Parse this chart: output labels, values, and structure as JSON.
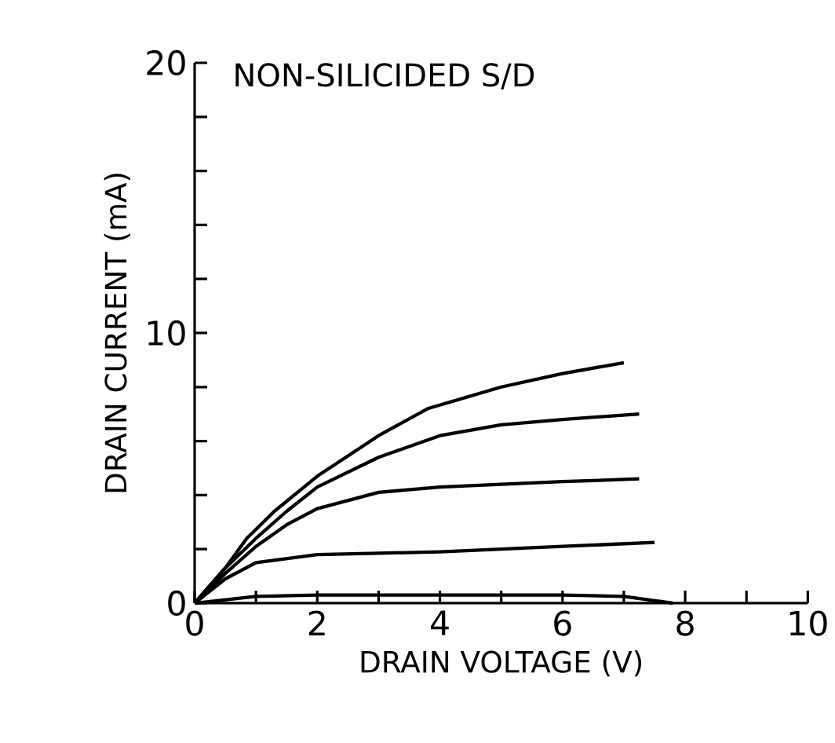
{
  "chart_data": {
    "type": "line",
    "title": "NON-SILICIDED S/D",
    "xlabel": "DRAIN VOLTAGE (V)",
    "ylabel": "DRAIN CURRENT (mA)",
    "xlim": [
      0,
      10
    ],
    "ylim": [
      0,
      20
    ],
    "xticks": [
      0,
      {
        "value": 1,
        "label": null
      },
      2,
      {
        "value": 3,
        "label": null
      },
      4,
      {
        "value": 5,
        "label": null
      },
      6,
      {
        "value": 7,
        "label": null
      },
      8,
      {
        "value": 9,
        "label": null
      },
      10
    ],
    "yticks": [
      0,
      {
        "value": 2,
        "label": null
      },
      {
        "value": 4,
        "label": null
      },
      {
        "value": 6,
        "label": null
      },
      {
        "value": 8,
        "label": null
      },
      10,
      {
        "value": 12,
        "label": null
      },
      {
        "value": 14,
        "label": null
      },
      {
        "value": 16,
        "label": null
      },
      {
        "value": 18,
        "label": null
      },
      20
    ],
    "marker": "none",
    "line_style": "solid",
    "series": [
      {
        "color": "#000000",
        "x": [
          0,
          0.5,
          0.85,
          1.3,
          2,
          3,
          3.8,
          5,
          6,
          7
        ],
        "values": [
          0,
          1.3,
          2.4,
          3.4,
          4.7,
          6.2,
          7.2,
          8.0,
          8.5,
          8.9
        ]
      },
      {
        "color": "#000000",
        "x": [
          0,
          0.5,
          1,
          1.5,
          2,
          3,
          4,
          5,
          6,
          7.25
        ],
        "values": [
          0,
          1.3,
          2.4,
          3.4,
          4.3,
          5.4,
          6.2,
          6.6,
          6.8,
          7.0
        ]
      },
      {
        "color": "#000000",
        "x": [
          0,
          0.5,
          1,
          1.5,
          2,
          3,
          4,
          5,
          6,
          7.25
        ],
        "values": [
          0,
          1.1,
          2.1,
          2.9,
          3.5,
          4.1,
          4.3,
          4.4,
          4.5,
          4.6
        ]
      },
      {
        "color": "#000000",
        "x": [
          0,
          0.5,
          1,
          2,
          3,
          4,
          5,
          6,
          7.5
        ],
        "values": [
          0,
          0.9,
          1.5,
          1.8,
          1.85,
          1.9,
          2.0,
          2.1,
          2.25
        ]
      },
      {
        "color": "#000000",
        "x": [
          0,
          1,
          2,
          4,
          6,
          7,
          7.8
        ],
        "values": [
          0,
          0.25,
          0.3,
          0.3,
          0.3,
          0.25,
          0
        ]
      }
    ]
  }
}
